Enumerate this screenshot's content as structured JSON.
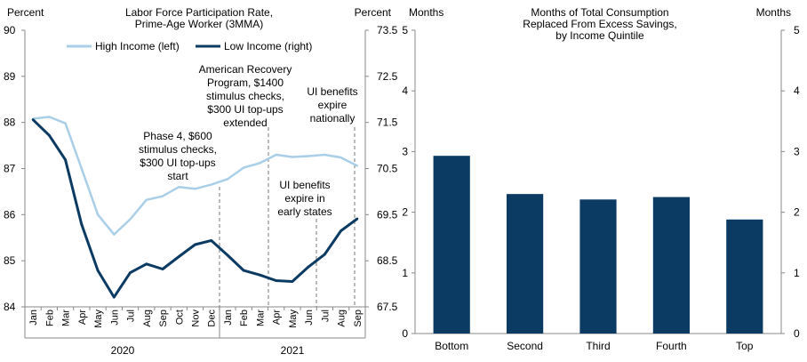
{
  "chart_data": [
    {
      "type": "line",
      "title": "Labor Force Participation Rate,",
      "subtitle": "Prime-Age Worker (3MMA)",
      "ylabel_left": "Percent",
      "ylabel_right": "Percent",
      "ylim_left": [
        84,
        90
      ],
      "ylim_right": [
        67.5,
        73.5
      ],
      "yticks_left": [
        "84",
        "85",
        "86",
        "87",
        "88",
        "89",
        "90"
      ],
      "yticks_right": [
        "67.5",
        "68.5",
        "69.5",
        "70.5",
        "71.5",
        "72.5",
        "73.5"
      ],
      "categories": [
        "Jan",
        "Feb",
        "Mar",
        "Apr",
        "May",
        "Jun",
        "Jul",
        "Aug",
        "Sep",
        "Oct",
        "Nov",
        "Dec",
        "Jan",
        "Feb",
        "Mar",
        "Apr",
        "May",
        "Jun",
        "Jul",
        "Aug",
        "Sep"
      ],
      "year_labels": [
        "2020",
        "2021"
      ],
      "series": [
        {
          "name": "High Income (left)",
          "axis": "left",
          "color": "#a9cfe8",
          "values": [
            88.08,
            88.12,
            87.98,
            87.0,
            86.0,
            85.57,
            85.9,
            86.32,
            86.4,
            86.6,
            86.56,
            86.65,
            86.77,
            87.02,
            87.12,
            87.3,
            87.25,
            87.27,
            87.3,
            87.24,
            87.06
          ]
        },
        {
          "name": "Low Income (right)",
          "axis": "right",
          "color": "#0b3a63",
          "values": [
            71.56,
            71.22,
            70.69,
            69.29,
            68.29,
            67.71,
            68.24,
            68.43,
            68.32,
            68.59,
            68.85,
            68.94,
            68.62,
            68.29,
            68.19,
            68.07,
            68.05,
            68.37,
            68.64,
            69.15,
            69.41
          ]
        }
      ],
      "annotations": [
        {
          "lines": [
            "Phase 4, $600",
            "stimulus checks,",
            "$300 UI top-ups",
            "start"
          ],
          "at": "Dec"
        },
        {
          "lines": [
            "American Recovery",
            "Program, $1400",
            "stimulus checks,",
            "$300 UI top-ups",
            "extended"
          ],
          "at": "Mar"
        },
        {
          "lines": [
            "UI benefits",
            "expire in",
            "early states"
          ],
          "at": "Jun"
        },
        {
          "lines": [
            "UI benefits",
            "expire",
            "nationally"
          ],
          "at": "Sep"
        }
      ]
    },
    {
      "type": "bar",
      "title": "Months of Total Consumption",
      "subtitle": "Replaced From Excess Savings,",
      "subtitle2": "by Income Quintile",
      "ylabel_left": "Months",
      "ylabel_right": "Months",
      "ylim": [
        0,
        5
      ],
      "yticks_left": [
        "0",
        "1",
        "2",
        "3",
        "4",
        "5"
      ],
      "yticks_right": [
        "0",
        "1",
        "2",
        "3",
        "4",
        "5"
      ],
      "categories": [
        "Bottom",
        "Second",
        "Third",
        "Fourth",
        "Top"
      ],
      "values": [
        2.93,
        2.3,
        2.21,
        2.25,
        1.88
      ],
      "color": "#0b3a63"
    }
  ]
}
